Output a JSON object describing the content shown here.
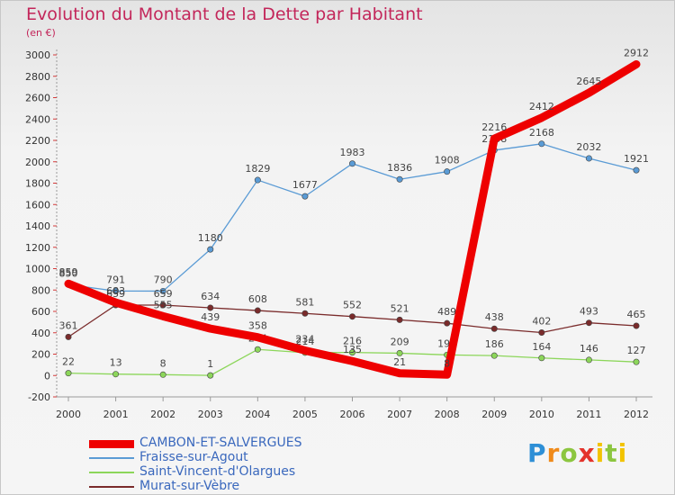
{
  "header": {
    "title": "Evolution du Montant de la Dette par Habitant",
    "subtitle": "(en €)"
  },
  "brand": {
    "letters": [
      "P",
      "r",
      "o",
      "x",
      "i",
      "t",
      "i"
    ],
    "colors": [
      "#2e8fd6",
      "#f08a1a",
      "#8cc63f",
      "#e4332b",
      "#f2c300",
      "#8cc63f",
      "#f2c300"
    ]
  },
  "chart_data": {
    "type": "line",
    "title": "Evolution du Montant de la Dette par Habitant",
    "subtitle": "(en €)",
    "xlabel": "",
    "ylabel": "",
    "x": [
      "2000",
      "2001",
      "2002",
      "2003",
      "2004",
      "2005",
      "2006",
      "2007",
      "2008",
      "2009",
      "2010",
      "2011",
      "2012"
    ],
    "ylim": [
      -200,
      3000
    ],
    "yticks": [
      -200,
      0,
      200,
      400,
      600,
      800,
      1000,
      1200,
      1400,
      1600,
      1800,
      2000,
      2200,
      2400,
      2600,
      2800,
      3000
    ],
    "grid": false,
    "legend_position": "bottom-left",
    "series": [
      {
        "name": "CAMBON-ET-SALVERGUES",
        "color": "#ee0000",
        "values": [
          859,
          683,
          555,
          439,
          358,
          234,
          135,
          21,
          8,
          2216,
          2412,
          2645,
          2912
        ]
      },
      {
        "name": "Fraisse-sur-Agout",
        "color": "#5a9bd5",
        "values": [
          850,
          791,
          790,
          1180,
          1829,
          1677,
          1983,
          1836,
          1908,
          2108,
          2168,
          2032,
          1921
        ]
      },
      {
        "name": "Saint-Vincent-d'Olargues",
        "color": "#8cd65a",
        "values": [
          22,
          13,
          8,
          1,
          244,
          214,
          216,
          209,
          193,
          186,
          164,
          146,
          127
        ]
      },
      {
        "name": "Murat-sur-Vèbre",
        "color": "#7a2b2b",
        "values": [
          361,
          659,
          659,
          634,
          608,
          581,
          552,
          521,
          489,
          438,
          402,
          493,
          465
        ]
      }
    ]
  }
}
